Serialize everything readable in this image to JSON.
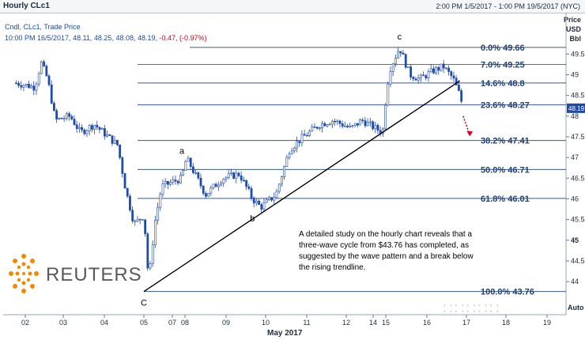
{
  "header": {
    "title": "Hourly CLc1",
    "date_range": "2:00 PM 1/5/2017 - 1:00 PM 19/5/2017 (NYC)"
  },
  "legend": {
    "line1": "Cndl, CLc1, Trade Price",
    "line2_prefix": "10:00 PM 16/5/2017, 48.11, 48.25, 48.08, 48.19,",
    "line2_change": "-0.47, (-0.97%)"
  },
  "axis": {
    "price_title": "Price",
    "currency": "USD",
    "unit": "Bbl",
    "auto": "Auto",
    "month_label": "May 2017",
    "last_price": "48.19"
  },
  "annotation": "A detailed study on the hourly chart reveals that a three-wave cycle from $43.76 has completed, as suggested by the wave pattern and a break below the rising trendline.",
  "logo": {
    "text": "REUTERS"
  },
  "colors": {
    "candle": "#1f4aa8",
    "fib_line": "#1f3f72",
    "arrow": "#d0021b",
    "last_price_bg": "#1f4aa8"
  },
  "chart_data": {
    "type": "candlestick",
    "title": "Hourly CLc1",
    "ylim": [
      43.2,
      50.5
    ],
    "y_ticks": [
      44,
      44.5,
      45,
      45.5,
      46,
      46.5,
      47,
      47.5,
      48,
      48.5,
      49,
      49.5
    ],
    "x_ticks": [
      "02",
      "03",
      "04",
      "05",
      "07",
      "08",
      "09",
      "10",
      "11",
      "12",
      "14",
      "15",
      "16",
      "17",
      "18",
      "19"
    ],
    "price_anchors": [
      {
        "date": "01/05 14:00",
        "price": 48.8
      },
      {
        "date": "02/05 06:00",
        "price": 48.7
      },
      {
        "date": "02/05 10:00",
        "price": 49.3
      },
      {
        "date": "02/05 14:00",
        "price": 48.9
      },
      {
        "date": "02/05 19:00",
        "price": 47.9
      },
      {
        "date": "03/05 04:00",
        "price": 48.0
      },
      {
        "date": "03/05 10:00",
        "price": 47.6
      },
      {
        "date": "03/05 18:00",
        "price": 47.8
      },
      {
        "date": "04/05 08:00",
        "price": 47.3
      },
      {
        "date": "04/05 13:00",
        "price": 46.2
      },
      {
        "date": "04/05 18:00",
        "price": 45.4
      },
      {
        "date": "05/05 00:00",
        "price": 45.6
      },
      {
        "date": "05/05 04:00",
        "price": 44.0
      },
      {
        "date": "05/05 09:00",
        "price": 45.4
      },
      {
        "date": "05/05 15:00",
        "price": 46.3
      },
      {
        "date": "07/05 18:00",
        "price": 46.5
      },
      {
        "date": "08/05 00:00",
        "price": 46.9
      },
      {
        "date": "08/05 02:00",
        "price": 46.9
      },
      {
        "date": "08/05 12:00",
        "price": 46.1
      },
      {
        "date": "08/05 22:00",
        "price": 46.5
      },
      {
        "date": "09/05 08:00",
        "price": 46.6
      },
      {
        "date": "09/05 16:00",
        "price": 46.0
      },
      {
        "date": "09/05 21:00",
        "price": 45.8
      },
      {
        "date": "10/05 06:00",
        "price": 46.1
      },
      {
        "date": "10/05 14:00",
        "price": 47.2
      },
      {
        "date": "10/05 22:00",
        "price": 47.5
      },
      {
        "date": "11/05 08:00",
        "price": 47.8
      },
      {
        "date": "11/05 16:00",
        "price": 47.9
      },
      {
        "date": "12/05 04:00",
        "price": 47.7
      },
      {
        "date": "12/05 14:00",
        "price": 47.9
      },
      {
        "date": "14/05 18:00",
        "price": 47.6
      },
      {
        "date": "14/05 22:00",
        "price": 48.2
      },
      {
        "date": "15/05 02:00",
        "price": 49.1
      },
      {
        "date": "15/05 08:00",
        "price": 49.66
      },
      {
        "date": "15/05 14:00",
        "price": 49.0
      },
      {
        "date": "15/05 20:00",
        "price": 48.9
      },
      {
        "date": "16/05 04:00",
        "price": 49.1
      },
      {
        "date": "16/05 10:00",
        "price": 49.2
      },
      {
        "date": "16/05 16:00",
        "price": 48.9
      },
      {
        "date": "16/05 20:00",
        "price": 48.5
      },
      {
        "date": "16/05 22:00",
        "price": 48.19
      }
    ],
    "fibonacci": [
      {
        "label": "0.0%",
        "price": 49.66
      },
      {
        "label": "7.0%",
        "price": 49.25
      },
      {
        "label": "14.6%",
        "price": 48.8
      },
      {
        "label": "23.6%",
        "price": 48.27
      },
      {
        "label": "38.2%",
        "price": 47.41
      },
      {
        "label": "50.0%",
        "price": 46.71
      },
      {
        "label": "61.8%",
        "price": 46.01
      },
      {
        "label": "100.0%",
        "price": 43.76
      }
    ],
    "wave_labels": [
      {
        "text": "C",
        "date": "05/05 00:00",
        "price": 43.76
      },
      {
        "text": "a",
        "date": "07/05 18:00",
        "price": 46.9
      },
      {
        "text": "b",
        "date": "09/05 16:00",
        "price": 45.8
      },
      {
        "text": "c",
        "date": "15/05 08:00",
        "price": 49.66
      }
    ],
    "trendline": {
      "from": {
        "date": "05/05 00:00",
        "price": 43.76
      },
      "to": {
        "date": "16/05 20:00",
        "price": 48.85
      }
    },
    "projection_arrow": {
      "from": {
        "date": "16/05 22:00",
        "price": 48.0
      },
      "to": {
        "date": "17/05 02:00",
        "price": 47.55
      }
    }
  }
}
